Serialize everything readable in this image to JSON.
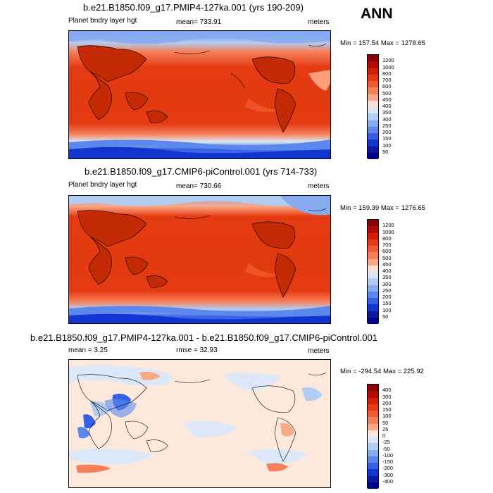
{
  "season": "ANN",
  "panels": [
    {
      "title": "b.e21.B1850.f09_g17.PMIP4-127ka.001 (yrs 190-209)",
      "left": "Planet bndry layer hgt",
      "center": "mean= 733.91",
      "right": "meters",
      "minmax": "Min = 157.54 Max = 1278.65",
      "levels": [
        "1200",
        "1000",
        "800",
        "700",
        "600",
        "500",
        "450",
        "400",
        "350",
        "300",
        "250",
        "200",
        "150",
        "100",
        "50"
      ],
      "colors": [
        "#8b0000",
        "#b30b00",
        "#d41e00",
        "#e63b12",
        "#f05a2e",
        "#f6805a",
        "#fba887",
        "#fde0d0",
        "#d8e6f6",
        "#b2cdf2",
        "#86abee",
        "#5b88ec",
        "#3560e6",
        "#1235cf",
        "#0a1aa0",
        "#00008b"
      ]
    },
    {
      "title": "b.e21.B1850.f09_g17.CMIP6-piControl.001 (yrs 714-733)",
      "left": "Planet bndry layer hgt",
      "center": "mean= 730.66",
      "right": "meters",
      "minmax": "Min = 159.39 Max = 1276.65",
      "levels": [
        "1200",
        "1000",
        "800",
        "700",
        "600",
        "500",
        "450",
        "400",
        "350",
        "300",
        "250",
        "200",
        "150",
        "100",
        "50"
      ],
      "colors": [
        "#8b0000",
        "#b30b00",
        "#d41e00",
        "#e63b12",
        "#f05a2e",
        "#f6805a",
        "#fba887",
        "#fde0d0",
        "#d8e6f6",
        "#b2cdf2",
        "#86abee",
        "#5b88ec",
        "#3560e6",
        "#1235cf",
        "#0a1aa0",
        "#00008b"
      ]
    },
    {
      "title": "b.e21.B1850.f09_g17.PMIP4-127ka.001 - b.e21.B1850.f09_g17.CMIP6-piControl.001",
      "left": "mean =   3.25",
      "center": "rmse =  32.93",
      "right": "meters",
      "minmax": "Min = -294.54 Max = 225.92",
      "levels": [
        "400",
        "300",
        "200",
        "150",
        "100",
        "50",
        "25",
        "0",
        "-25",
        "-50",
        "-100",
        "-150",
        "-200",
        "-300",
        "-400"
      ],
      "colors": [
        "#8b0000",
        "#b30b00",
        "#d41e00",
        "#e63b12",
        "#f05a2e",
        "#f6805a",
        "#fba887",
        "#fde8dc",
        "#dce8f8",
        "#b2cdf2",
        "#86abee",
        "#5b88ec",
        "#3560e6",
        "#1235cf",
        "#0a1aa0",
        "#00008b"
      ]
    }
  ]
}
